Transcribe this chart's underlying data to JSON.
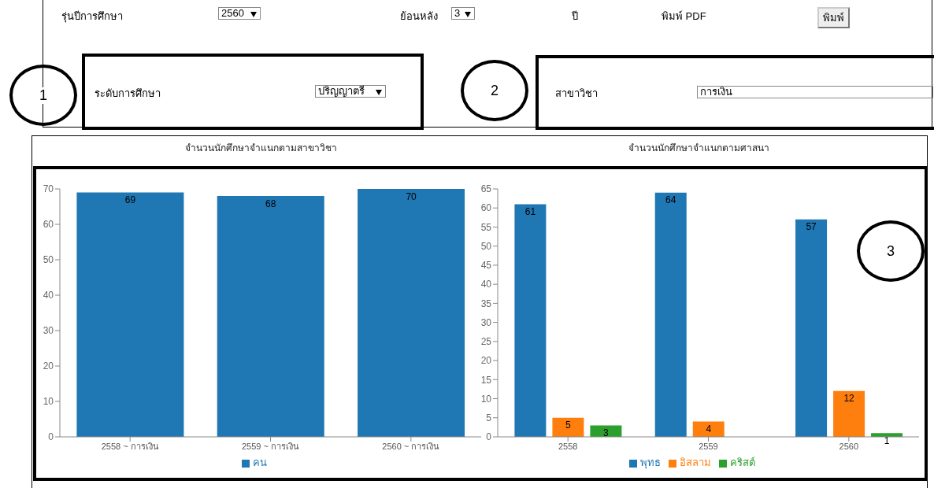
{
  "chart_data": [
    {
      "type": "bar",
      "title": "จำนวนนักศึกษาจำแนกตามสาขาวิชา",
      "categories": [
        "2558 ~ การเงิน",
        "2559 ~ การเงิน",
        "2560 ~ การเงิน"
      ],
      "series": [
        {
          "name": "คน",
          "color": "#1f77b4",
          "values": [
            69,
            68,
            70
          ]
        }
      ],
      "ylim": [
        0,
        70
      ],
      "yticks": [
        0,
        10,
        20,
        30,
        40,
        50,
        60,
        70
      ],
      "grid": false,
      "legend": "bottom",
      "data_labels": true,
      "annotations": [
        "รุ่นปีการศึกษา",
        "2560",
        "ย้อนหลัง",
        "3",
        "ปี",
        "พิมพ์ PDF",
        "พิมพ์",
        "1",
        "ระดับการศึกษา",
        "ปริญญาตรี",
        "2",
        "สาขาวิชา",
        "การเงิน",
        "3"
      ]
    },
    {
      "type": "bar",
      "title": "จำนวนนักศึกษาจำแนกตามศาสนา",
      "categories": [
        "2558",
        "2559",
        "2560"
      ],
      "series": [
        {
          "name": "พุทธ",
          "color": "#1f77b4",
          "values": [
            61,
            64,
            57
          ]
        },
        {
          "name": "อิสลาม",
          "color": "#ff7f0e",
          "values": [
            5,
            4,
            12
          ]
        },
        {
          "name": "คริสต์",
          "color": "#2ca02c",
          "values": [
            3,
            null,
            1
          ]
        }
      ],
      "ylim": [
        0,
        65
      ],
      "yticks": [
        0,
        5,
        10,
        15,
        20,
        25,
        30,
        35,
        40,
        45,
        50,
        55,
        60,
        65
      ],
      "grid": false,
      "legend": "bottom",
      "data_labels": true
    }
  ]
}
